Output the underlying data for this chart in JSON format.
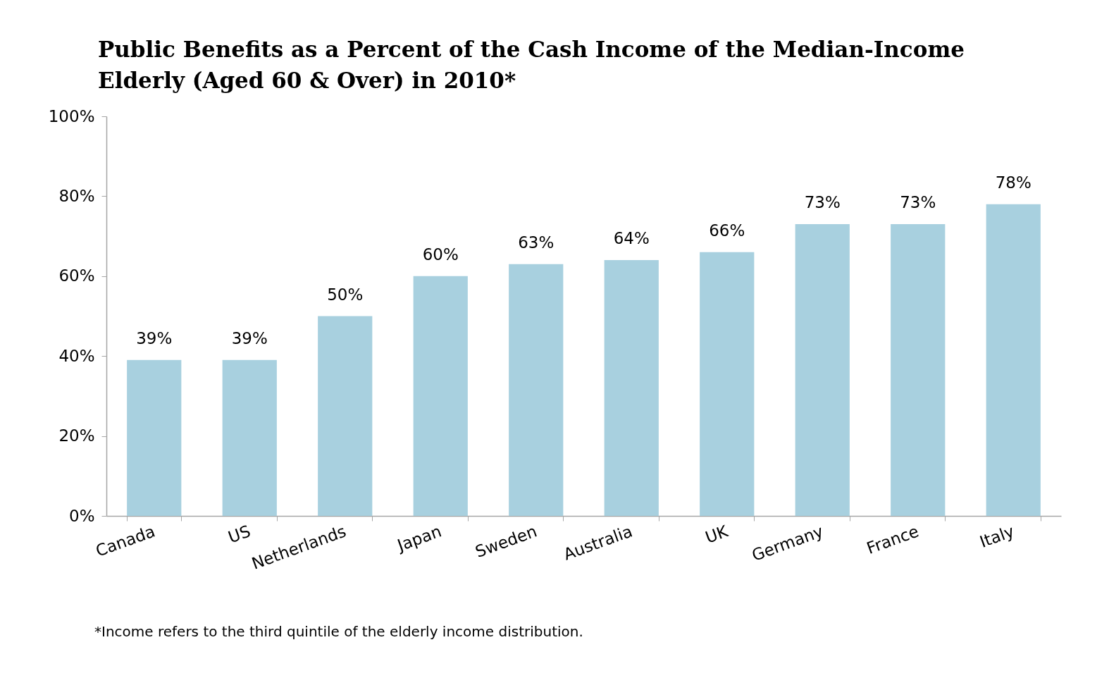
{
  "chart_data": {
    "type": "bar",
    "title": "Public Benefits as a Percent of the Cash Income of the Median-Income Elderly (Aged 60 & Over) in 2010*",
    "categories": [
      "Canada",
      "US",
      "Netherlands",
      "Japan",
      "Sweden",
      "Australia",
      "UK",
      "Germany",
      "France",
      "Italy"
    ],
    "values": [
      39,
      39,
      50,
      60,
      63,
      64,
      66,
      73,
      73,
      78
    ],
    "value_labels": [
      "39%",
      "39%",
      "50%",
      "60%",
      "63%",
      "64%",
      "66%",
      "73%",
      "73%",
      "78%"
    ],
    "color": "#a8d0df",
    "ylim": [
      0,
      100
    ],
    "yticks": [
      {
        "value": 0,
        "label": "0%"
      },
      {
        "value": 20,
        "label": "20%"
      },
      {
        "value": 40,
        "label": "40%"
      },
      {
        "value": 60,
        "label": "60%"
      },
      {
        "value": 80,
        "label": "80%"
      },
      {
        "value": 100,
        "label": "100%"
      }
    ],
    "grid": false,
    "annotations": [
      "*Income refers to the third quintile of the elderly income distribution."
    ]
  }
}
